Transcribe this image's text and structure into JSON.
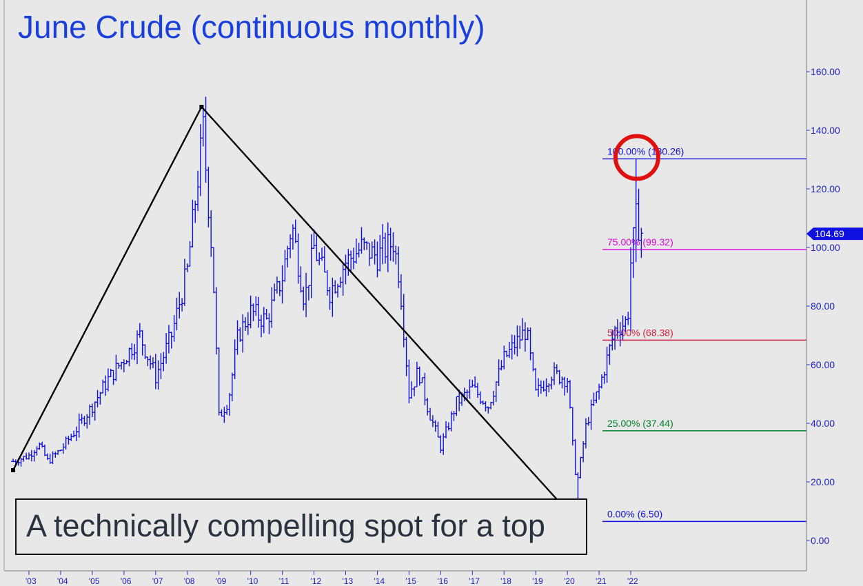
{
  "title": "June Crude (continuous monthly)",
  "caption": "A technically compelling spot for a top",
  "colors": {
    "background": "#e8e8e8",
    "price_bars": "#1010e0",
    "title": "#1a3fe0",
    "fib_100": "#1010e0",
    "fib_75": "#e000e0",
    "fib_50": "#d02040",
    "fib_25": "#00802a",
    "fib_0": "#1010e0",
    "highlight_circle": "#e01010",
    "trend_lines": "#000000"
  },
  "chart_data": {
    "type": "bar",
    "subtype": "ohlc-monthly",
    "title": "June Crude (continuous monthly)",
    "y_axis": {
      "position": "right",
      "range": [
        -10,
        180
      ],
      "ticks": [
        "160.00",
        "140.00",
        "120.00",
        "100.00",
        "80.00",
        "60.00",
        "40.00",
        "20.00",
        "0.00"
      ],
      "tick_values": [
        160,
        140,
        120,
        100,
        80,
        60,
        40,
        20,
        0
      ]
    },
    "x_axis": {
      "tick_labels": [
        "'03",
        "'04",
        "'05",
        "'06",
        "'07",
        "'08",
        "'09",
        "'10",
        "'11",
        "'12",
        "'13",
        "'14",
        "'15",
        "'16",
        "'17",
        "'18",
        "'19",
        "'20",
        "'21",
        "'22"
      ],
      "tick_years": [
        2003,
        2004,
        2005,
        2006,
        2007,
        2008,
        2009,
        2010,
        2011,
        2012,
        2013,
        2014,
        2015,
        2016,
        2017,
        2018,
        2019,
        2020,
        2021,
        2022
      ]
    },
    "price_series_anchors": [
      [
        2002.5,
        27
      ],
      [
        2003.0,
        29
      ],
      [
        2003.3,
        33
      ],
      [
        2003.6,
        27
      ],
      [
        2004.0,
        31
      ],
      [
        2004.5,
        38
      ],
      [
        2005.0,
        46
      ],
      [
        2005.5,
        55
      ],
      [
        2006.0,
        62
      ],
      [
        2006.5,
        70
      ],
      [
        2007.0,
        56
      ],
      [
        2007.5,
        70
      ],
      [
        2008.0,
        92
      ],
      [
        2008.5,
        140
      ],
      [
        2008.8,
        95
      ],
      [
        2009.0,
        42
      ],
      [
        2009.3,
        48
      ],
      [
        2009.6,
        70
      ],
      [
        2010.0,
        78
      ],
      [
        2010.5,
        75
      ],
      [
        2011.0,
        90
      ],
      [
        2011.3,
        108
      ],
      [
        2011.7,
        82
      ],
      [
        2012.0,
        100
      ],
      [
        2012.5,
        85
      ],
      [
        2013.0,
        95
      ],
      [
        2013.5,
        100
      ],
      [
        2014.0,
        97
      ],
      [
        2014.5,
        102
      ],
      [
        2014.7,
        90
      ],
      [
        2015.0,
        50
      ],
      [
        2015.3,
        58
      ],
      [
        2015.6,
        45
      ],
      [
        2016.0,
        32
      ],
      [
        2016.5,
        47
      ],
      [
        2017.0,
        52
      ],
      [
        2017.5,
        46
      ],
      [
        2018.0,
        62
      ],
      [
        2018.7,
        72
      ],
      [
        2019.0,
        50
      ],
      [
        2019.5,
        57
      ],
      [
        2020.0,
        55
      ],
      [
        2020.2,
        28
      ],
      [
        2020.3,
        19
      ],
      [
        2020.6,
        40
      ],
      [
        2021.0,
        52
      ],
      [
        2021.5,
        72
      ],
      [
        2021.9,
        75
      ],
      [
        2022.0,
        95
      ],
      [
        2022.17,
        110
      ],
      [
        2022.35,
        104.69
      ]
    ],
    "last_price": "104.69",
    "last_value": 104.69,
    "fib_levels": [
      {
        "pct": "100.00%",
        "label": "100.00% (130.26)",
        "value": 130.26,
        "color": "#1010e0"
      },
      {
        "pct": "75.00%",
        "label": "75.00% (99.32)",
        "value": 99.32,
        "color": "#e000e0"
      },
      {
        "pct": "50.00%",
        "label": "50.00% (68.38)",
        "value": 68.38,
        "color": "#d02040"
      },
      {
        "pct": "25.00%",
        "label": "25.00% (37.44)",
        "value": 37.44,
        "color": "#00802a"
      },
      {
        "pct": "0.00%",
        "label": "0.00% (6.50)",
        "value": 6.5,
        "color": "#1010e0"
      }
    ],
    "trend_lines": [
      {
        "points": [
          [
            2002.5,
            24
          ],
          [
            2008.45,
            148
          ]
        ]
      },
      {
        "points": [
          [
            2008.45,
            148
          ],
          [
            2020.3,
            6.5
          ]
        ]
      }
    ],
    "highlight": {
      "x": 2022.15,
      "value": 130.26,
      "shape": "circle"
    }
  }
}
